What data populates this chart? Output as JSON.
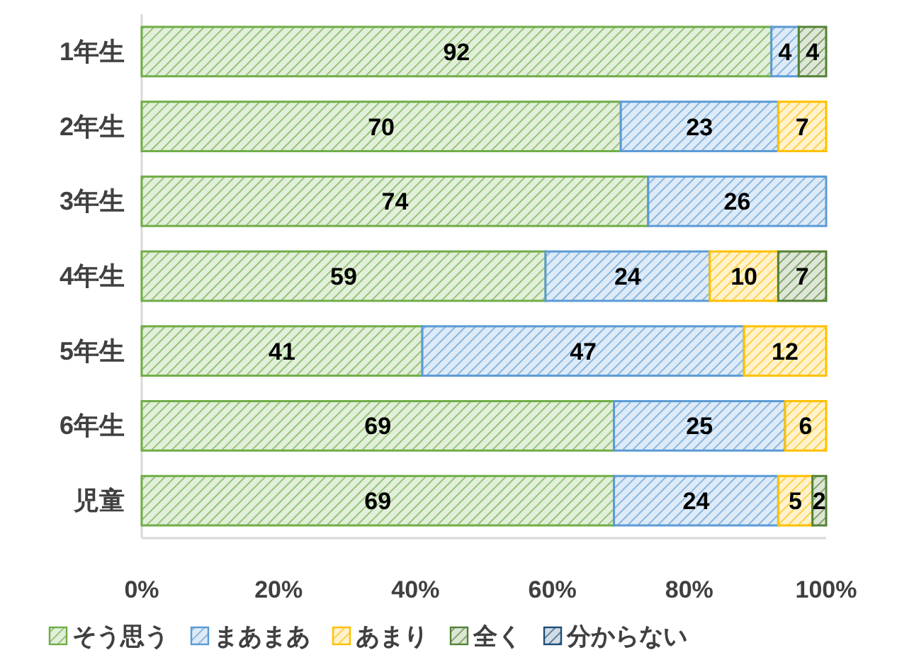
{
  "chart_data": {
    "type": "bar",
    "orientation": "horizontal",
    "stacked": true,
    "categories": [
      "1年生",
      "2年生",
      "3年生",
      "4年生",
      "5年生",
      "6年生",
      "児童"
    ],
    "series": [
      {
        "name": "そう思う",
        "color": "#70ad47",
        "values": [
          92,
          70,
          74,
          59,
          41,
          69,
          69
        ],
        "value_labels": [
          "92",
          "70",
          "74",
          "59",
          "41",
          "69",
          "69"
        ]
      },
      {
        "name": "まあまあ",
        "color": "#5b9bd5",
        "values": [
          4,
          23,
          26,
          24,
          47,
          25,
          24
        ],
        "value_labels": [
          "4",
          "23",
          "26",
          "24",
          "47",
          "25",
          "24"
        ]
      },
      {
        "name": "あまり",
        "color": "#ffc000",
        "values": [
          0,
          7,
          0,
          10,
          12,
          6,
          5
        ],
        "value_labels": [
          null,
          "7",
          null,
          "10",
          "12",
          "6",
          "5"
        ]
      },
      {
        "name": "全く",
        "color": "#548235",
        "values": [
          4,
          0,
          0,
          7,
          0,
          0,
          2
        ],
        "value_labels": [
          "4",
          null,
          null,
          "7",
          null,
          null,
          "2"
        ]
      },
      {
        "name": "分からない",
        "color": "#1f4e79",
        "values": [
          0,
          0,
          0,
          0,
          0,
          0,
          0
        ],
        "value_labels": [
          null,
          null,
          null,
          null,
          null,
          null,
          null
        ]
      }
    ],
    "xlim": [
      0,
      100
    ],
    "xticks": [
      {
        "value": 0,
        "label": "0%"
      },
      {
        "value": 20,
        "label": "20%"
      },
      {
        "value": 40,
        "label": "40%"
      },
      {
        "value": 60,
        "label": "60%"
      },
      {
        "value": 80,
        "label": "80%"
      },
      {
        "value": 100,
        "label": "100%"
      }
    ],
    "grid": false,
    "legend": "bottom"
  }
}
